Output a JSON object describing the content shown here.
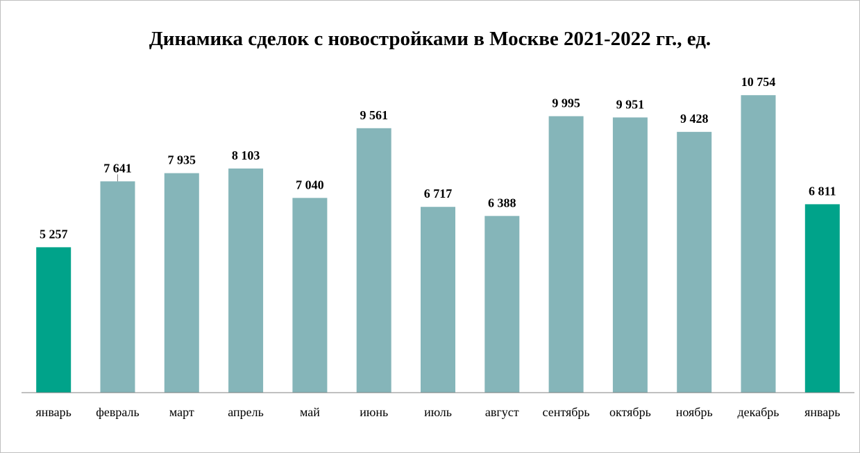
{
  "chart_data": {
    "type": "bar",
    "title": "Динамика сделок с новостройками в Москве 2021-2022 гг., ед.",
    "categories": [
      "январь",
      "февраль",
      "март",
      "апрель",
      "май",
      "июнь",
      "июль",
      "август",
      "сентябрь",
      "октябрь",
      "ноябрь",
      "декабрь",
      "январь"
    ],
    "values": [
      5257,
      7641,
      7935,
      8103,
      7040,
      9561,
      6717,
      6388,
      9995,
      9951,
      9428,
      10754,
      6811
    ],
    "value_labels": [
      "5 257",
      "7 641",
      "7 935",
      "8 103",
      "7 040",
      "9 561",
      "6 717",
      "6 388",
      "9 995",
      "9 951",
      "9 428",
      "10 754",
      "6 811"
    ],
    "highlighted": [
      true,
      false,
      false,
      false,
      false,
      false,
      false,
      false,
      false,
      false,
      false,
      false,
      true
    ],
    "colors": {
      "highlight": "#00a38a",
      "normal": "#85b5b9",
      "axis": "#808080"
    },
    "ylim": [
      0,
      11000
    ],
    "grid": false,
    "legend": "none",
    "xlabel": "",
    "ylabel": ""
  }
}
